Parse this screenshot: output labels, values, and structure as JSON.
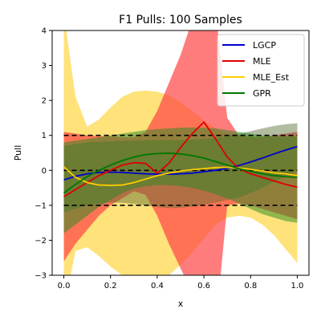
{
  "chart_data": {
    "type": "line",
    "title": "F1 Pulls: 100 Samples",
    "xlabel": "x",
    "ylabel": "Pull",
    "xlim": [
      -0.05,
      1.05
    ],
    "ylim": [
      -3,
      4
    ],
    "xticks": [
      0.0,
      0.2,
      0.4,
      0.6,
      0.8,
      1.0
    ],
    "xtick_labels": [
      "0.0",
      "0.2",
      "0.4",
      "0.6",
      "0.8",
      "1.0"
    ],
    "yticks": [
      -3,
      -2,
      -1,
      0,
      1,
      2,
      3,
      4
    ],
    "ytick_labels": [
      "−3",
      "−2",
      "−1",
      "0",
      "1",
      "2",
      "3",
      "4"
    ],
    "reference_lines": [
      1,
      0,
      -1
    ],
    "legend": {
      "placement": "top-right"
    },
    "x": [
      0.0,
      0.05,
      0.1,
      0.15,
      0.2,
      0.25,
      0.3,
      0.35,
      0.4,
      0.45,
      0.5,
      0.55,
      0.6,
      0.65,
      0.7,
      0.75,
      0.8,
      0.85,
      0.9,
      0.95,
      1.0
    ],
    "series": [
      {
        "name": "LGCP",
        "color": "#0000cc",
        "values": [
          -0.27,
          -0.17,
          -0.1,
          -0.06,
          -0.05,
          -0.06,
          -0.08,
          -0.1,
          -0.11,
          -0.11,
          -0.1,
          -0.08,
          -0.04,
          0.0,
          0.06,
          0.14,
          0.24,
          0.35,
          0.47,
          0.58,
          0.68
        ],
        "band_color": "#556b2f",
        "band_opacity": 0.45,
        "upper": [
          0.7,
          0.75,
          0.8,
          0.82,
          0.83,
          0.84,
          0.85,
          0.86,
          0.86,
          0.86,
          0.87,
          0.88,
          0.9,
          0.93,
          0.98,
          1.05,
          1.12,
          1.2,
          1.27,
          1.32,
          1.35
        ],
        "lower": [
          -1.2,
          -1.1,
          -1.0,
          -0.95,
          -0.92,
          -0.93,
          -0.96,
          -1.0,
          -1.05,
          -1.08,
          -1.07,
          -1.04,
          -0.98,
          -0.92,
          -0.85,
          -0.78,
          -0.65,
          -0.5,
          -0.33,
          -0.17,
          0.0
        ]
      },
      {
        "name": "MLE",
        "color": "#dd0000",
        "values": [
          -0.75,
          -0.55,
          -0.35,
          -0.15,
          0.0,
          0.15,
          0.22,
          0.2,
          -0.08,
          0.2,
          0.65,
          1.05,
          1.38,
          0.9,
          0.38,
          0.05,
          -0.1,
          -0.2,
          -0.3,
          -0.4,
          -0.48
        ],
        "band_color": "#ff4444",
        "band_opacity": 0.7,
        "upper": [
          1.1,
          1.05,
          1.0,
          0.98,
          0.97,
          0.95,
          0.95,
          1.1,
          1.7,
          2.5,
          3.3,
          4.3,
          5.0,
          4.6,
          1.5,
          1.0,
          0.95,
          0.95,
          1.0,
          1.05,
          1.1
        ],
        "lower": [
          -2.6,
          -2.1,
          -1.7,
          -1.3,
          -1.0,
          -0.8,
          -0.6,
          -0.7,
          -1.3,
          -2.1,
          -2.8,
          -3.5,
          -4.2,
          -4.5,
          -1.0,
          -0.95,
          -1.0,
          -1.1,
          -1.2,
          -1.3,
          -1.4
        ]
      },
      {
        "name": "MLE_Est",
        "color": "#ffcc00",
        "values": [
          0.1,
          -0.2,
          -0.35,
          -0.42,
          -0.43,
          -0.42,
          -0.35,
          -0.25,
          -0.15,
          -0.08,
          -0.02,
          0.02,
          0.05,
          0.08,
          0.09,
          0.07,
          0.03,
          -0.02,
          -0.07,
          -0.1,
          -0.15
        ],
        "band_color": "#ffd84d",
        "band_opacity": 0.75,
        "upper": [
          4.5,
          2.1,
          1.25,
          1.45,
          1.8,
          2.1,
          2.25,
          2.28,
          2.25,
          2.15,
          1.95,
          1.7,
          1.42,
          1.2,
          1.05,
          1.0,
          0.98,
          0.97,
          0.97,
          0.98,
          1.0
        ],
        "lower": [
          -4.0,
          -2.3,
          -2.2,
          -2.45,
          -2.75,
          -3.0,
          -3.2,
          -3.25,
          -3.2,
          -3.0,
          -2.7,
          -2.35,
          -1.95,
          -1.55,
          -1.35,
          -1.3,
          -1.35,
          -1.55,
          -1.85,
          -2.25,
          -2.65
        ]
      },
      {
        "name": "GPR",
        "color": "#007700",
        "values": [
          -0.65,
          -0.4,
          -0.18,
          0.0,
          0.15,
          0.28,
          0.38,
          0.45,
          0.48,
          0.49,
          0.47,
          0.42,
          0.35,
          0.25,
          0.15,
          0.05,
          -0.03,
          -0.1,
          -0.15,
          -0.18,
          -0.2
        ],
        "band_color": "#228b22",
        "band_opacity": 0.5,
        "upper": [
          0.8,
          0.85,
          0.9,
          0.95,
          1.0,
          1.05,
          1.1,
          1.15,
          1.18,
          1.2,
          1.22,
          1.23,
          1.22,
          1.2,
          1.15,
          1.1,
          1.05,
          1.0,
          0.98,
          0.97,
          0.97
        ],
        "lower": [
          -1.8,
          -1.55,
          -1.3,
          -1.05,
          -0.85,
          -0.65,
          -0.52,
          -0.45,
          -0.42,
          -0.42,
          -0.45,
          -0.5,
          -0.58,
          -0.68,
          -0.8,
          -0.95,
          -1.1,
          -1.25,
          -1.35,
          -1.45,
          -1.5
        ]
      }
    ]
  }
}
